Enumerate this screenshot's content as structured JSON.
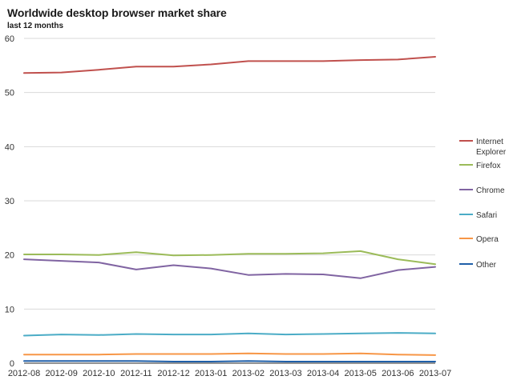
{
  "chart_data": {
    "type": "line",
    "title": "Worldwide desktop browser market share",
    "subtitle": "last 12 months",
    "xlabel": "",
    "ylabel": "",
    "x": [
      "2012-08",
      "2012-09",
      "2012-10",
      "2012-11",
      "2012-12",
      "2013-01",
      "2013-02",
      "2013-03",
      "2013-04",
      "2013-05",
      "2013-06",
      "2013-07"
    ],
    "yticks": [
      0,
      10,
      20,
      30,
      40,
      50,
      60
    ],
    "ylim": [
      0,
      60
    ],
    "grid": true,
    "legend_position": "right",
    "series": [
      {
        "name": "Internet Explorer",
        "legend_lines": [
          "Internet",
          "Explorer"
        ],
        "color": "#c0504d",
        "values": [
          53.6,
          53.7,
          54.2,
          54.8,
          54.8,
          55.2,
          55.8,
          55.8,
          55.8,
          56.0,
          56.1,
          56.6
        ]
      },
      {
        "name": "Firefox",
        "legend_lines": [
          "Firefox"
        ],
        "color": "#9bbb59",
        "values": [
          20.1,
          20.1,
          20.0,
          20.5,
          19.9,
          20.0,
          20.2,
          20.2,
          20.3,
          20.7,
          19.2,
          18.3
        ]
      },
      {
        "name": "Chrome",
        "legend_lines": [
          "Chrome"
        ],
        "color": "#8064a2",
        "values": [
          19.2,
          18.9,
          18.6,
          17.3,
          18.1,
          17.5,
          16.3,
          16.5,
          16.4,
          15.7,
          17.2,
          17.8
        ]
      },
      {
        "name": "Safari",
        "legend_lines": [
          "Safari"
        ],
        "color": "#4bacc6",
        "values": [
          5.1,
          5.3,
          5.2,
          5.4,
          5.3,
          5.3,
          5.5,
          5.3,
          5.4,
          5.5,
          5.6,
          5.5
        ]
      },
      {
        "name": "Opera",
        "legend_lines": [
          "Opera"
        ],
        "color": "#f79646",
        "values": [
          1.6,
          1.6,
          1.6,
          1.7,
          1.7,
          1.7,
          1.8,
          1.7,
          1.7,
          1.8,
          1.6,
          1.5
        ]
      },
      {
        "name": "Other",
        "legend_lines": [
          "Other"
        ],
        "color": "#1f5fa8",
        "values": [
          0.4,
          0.4,
          0.4,
          0.4,
          0.3,
          0.3,
          0.4,
          0.3,
          0.3,
          0.3,
          0.3,
          0.3
        ]
      }
    ]
  }
}
